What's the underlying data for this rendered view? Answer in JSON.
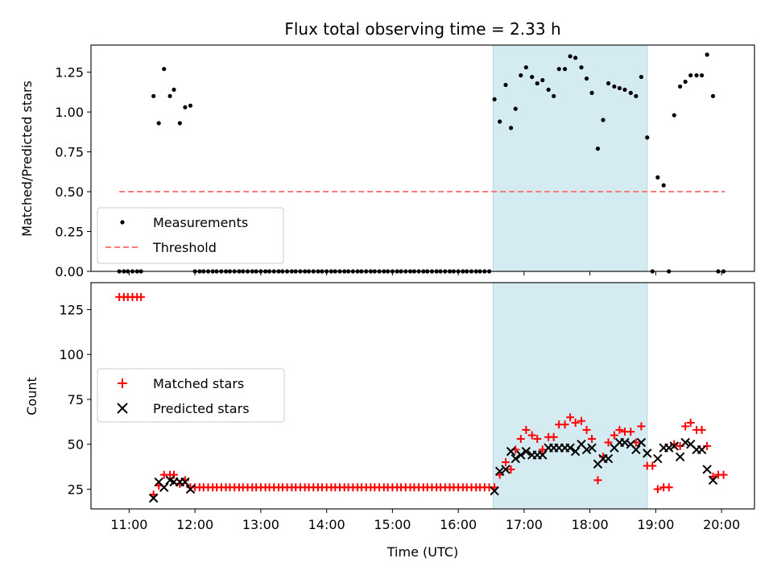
{
  "chart_data": [
    {
      "type": "scatter",
      "title": "Flux total observing time = 2.33 h",
      "xlabel": "",
      "ylabel": "Matched/Predicted stars",
      "xlim": [
        10.42,
        20.5
      ],
      "ylim": [
        0.0,
        1.42
      ],
      "yticks": [
        "0.00",
        "0.25",
        "0.50",
        "0.75",
        "1.00",
        "1.25"
      ],
      "ytick_values": [
        0,
        0.25,
        0.5,
        0.75,
        1.0,
        1.25
      ],
      "shaded_region": {
        "x_start": 16.53,
        "x_end": 18.87,
        "color": "#d4ebf1"
      },
      "legend": {
        "position": "lower-left",
        "entries": [
          "Measurements",
          "Threshold"
        ]
      },
      "series": [
        {
          "name": "Measurements",
          "marker": "dot",
          "color": "#000000",
          "x": [
            10.85,
            10.92,
            10.98,
            11.05,
            11.12,
            11.18,
            11.37,
            11.45,
            11.53,
            11.62,
            11.68,
            11.77,
            11.85,
            11.93,
            12.0,
            12.07,
            12.13,
            12.2,
            12.27,
            12.33,
            12.4,
            12.47,
            12.53,
            12.6,
            12.67,
            12.73,
            12.8,
            12.87,
            12.93,
            13.0,
            13.07,
            13.13,
            13.2,
            13.27,
            13.33,
            13.4,
            13.47,
            13.53,
            13.6,
            13.67,
            13.73,
            13.8,
            13.87,
            13.93,
            14.0,
            14.07,
            14.13,
            14.2,
            14.27,
            14.33,
            14.4,
            14.47,
            14.53,
            14.6,
            14.67,
            14.73,
            14.8,
            14.87,
            14.93,
            15.0,
            15.07,
            15.13,
            15.2,
            15.27,
            15.33,
            15.4,
            15.47,
            15.53,
            15.6,
            15.67,
            15.73,
            15.8,
            15.87,
            15.93,
            16.0,
            16.07,
            16.13,
            16.2,
            16.27,
            16.33,
            16.4,
            16.47,
            16.55,
            16.63,
            16.72,
            16.8,
            16.87,
            16.95,
            17.03,
            17.12,
            17.2,
            17.28,
            17.37,
            17.45,
            17.53,
            17.62,
            17.7,
            17.78,
            17.87,
            17.95,
            18.03,
            18.12,
            18.2,
            18.28,
            18.37,
            18.45,
            18.53,
            18.62,
            18.7,
            18.78,
            18.87,
            18.95,
            19.03,
            19.12,
            19.2,
            19.28,
            19.37,
            19.45,
            19.53,
            19.62,
            19.7,
            19.78,
            19.87,
            19.95,
            20.03
          ],
          "y": [
            0,
            0,
            0,
            0,
            0,
            0,
            1.1,
            0.93,
            1.27,
            1.1,
            1.14,
            0.93,
            1.03,
            1.04,
            0,
            0,
            0,
            0,
            0,
            0,
            0,
            0,
            0,
            0,
            0,
            0,
            0,
            0,
            0,
            0,
            0,
            0,
            0,
            0,
            0,
            0,
            0,
            0,
            0,
            0,
            0,
            0,
            0,
            0,
            0,
            0,
            0,
            0,
            0,
            0,
            0,
            0,
            0,
            0,
            0,
            0,
            0,
            0,
            0,
            0,
            0,
            0,
            0,
            0,
            0,
            0,
            0,
            0,
            0,
            0,
            0,
            0,
            0,
            0,
            0,
            0,
            0,
            0,
            0,
            0,
            0,
            0,
            1.08,
            0.94,
            1.17,
            0.9,
            1.02,
            1.23,
            1.28,
            1.22,
            1.18,
            1.2,
            1.14,
            1.1,
            1.27,
            1.27,
            1.35,
            1.34,
            1.28,
            1.21,
            1.12,
            0.77,
            0.95,
            1.18,
            1.16,
            1.15,
            1.14,
            1.12,
            1.1,
            1.22,
            0.84,
            0.0,
            0.59,
            0.54,
            0.0,
            0.98,
            1.16,
            1.19,
            1.23,
            1.23,
            1.23,
            1.36,
            1.1,
            0.0,
            0.0
          ]
        },
        {
          "name": "Threshold",
          "style": "dashed",
          "color": "#ff7b7b",
          "x": [
            10.85,
            20.05
          ],
          "y": [
            0.5,
            0.5
          ]
        }
      ]
    },
    {
      "type": "scatter",
      "xlabel": "Time (UTC)",
      "ylabel": "Count",
      "xlim": [
        10.42,
        20.5
      ],
      "ylim": [
        14,
        140
      ],
      "xticks": [
        "11:00",
        "12:00",
        "13:00",
        "14:00",
        "15:00",
        "16:00",
        "17:00",
        "18:00",
        "19:00",
        "20:00"
      ],
      "xtick_values": [
        11,
        12,
        13,
        14,
        15,
        16,
        17,
        18,
        19,
        20
      ],
      "yticks": [
        "25",
        "50",
        "75",
        "100",
        "125"
      ],
      "ytick_values": [
        25,
        50,
        75,
        100,
        125
      ],
      "shaded_region": {
        "x_start": 16.53,
        "x_end": 18.87,
        "color": "#d4ebf1"
      },
      "legend": {
        "position": "center-left",
        "entries": [
          "Matched stars",
          "Predicted stars"
        ]
      },
      "series": [
        {
          "name": "Matched stars",
          "marker": "plus",
          "color": "#ff0000",
          "x": [
            10.85,
            10.92,
            10.98,
            11.05,
            11.12,
            11.18,
            11.37,
            11.45,
            11.53,
            11.62,
            11.68,
            11.77,
            11.85,
            11.93,
            12.0,
            12.07,
            12.13,
            12.2,
            12.27,
            12.33,
            12.4,
            12.47,
            12.53,
            12.6,
            12.67,
            12.73,
            12.8,
            12.87,
            12.93,
            13.0,
            13.07,
            13.13,
            13.2,
            13.27,
            13.33,
            13.4,
            13.47,
            13.53,
            13.6,
            13.67,
            13.73,
            13.8,
            13.87,
            13.93,
            14.0,
            14.07,
            14.13,
            14.2,
            14.27,
            14.33,
            14.4,
            14.47,
            14.53,
            14.6,
            14.67,
            14.73,
            14.8,
            14.87,
            14.93,
            15.0,
            15.07,
            15.13,
            15.2,
            15.27,
            15.33,
            15.4,
            15.47,
            15.53,
            15.6,
            15.67,
            15.73,
            15.8,
            15.87,
            15.93,
            16.0,
            16.07,
            16.13,
            16.2,
            16.27,
            16.33,
            16.4,
            16.47,
            16.55,
            16.63,
            16.72,
            16.8,
            16.87,
            16.95,
            17.03,
            17.12,
            17.2,
            17.28,
            17.37,
            17.45,
            17.53,
            17.62,
            17.7,
            17.78,
            17.87,
            17.95,
            18.03,
            18.12,
            18.2,
            18.28,
            18.37,
            18.45,
            18.53,
            18.62,
            18.7,
            18.78,
            18.87,
            18.95,
            19.03,
            19.12,
            19.2,
            19.28,
            19.37,
            19.45,
            19.53,
            19.62,
            19.7,
            19.78,
            19.87,
            19.95,
            20.03
          ],
          "y": [
            132,
            132,
            132,
            132,
            132,
            132,
            22,
            27,
            33,
            33,
            33,
            28,
            30,
            26,
            26,
            26,
            26,
            26,
            26,
            26,
            26,
            26,
            26,
            26,
            26,
            26,
            26,
            26,
            26,
            26,
            26,
            26,
            26,
            26,
            26,
            26,
            26,
            26,
            26,
            26,
            26,
            26,
            26,
            26,
            26,
            26,
            26,
            26,
            26,
            26,
            26,
            26,
            26,
            26,
            26,
            26,
            26,
            26,
            26,
            26,
            26,
            26,
            26,
            26,
            26,
            26,
            26,
            26,
            26,
            26,
            26,
            26,
            26,
            26,
            26,
            26,
            26,
            26,
            26,
            26,
            26,
            26,
            26,
            33,
            40,
            36,
            47,
            53,
            58,
            55,
            53,
            47,
            54,
            54,
            61,
            61,
            65,
            62,
            63,
            58,
            53,
            30,
            43,
            51,
            55,
            58,
            57,
            57,
            51,
            60,
            38,
            38,
            25,
            26,
            26,
            50,
            49,
            60,
            62,
            58,
            58,
            49,
            32,
            33,
            33
          ]
        },
        {
          "name": "Predicted stars",
          "marker": "x",
          "color": "#000000",
          "x": [
            11.37,
            11.45,
            11.53,
            11.62,
            11.68,
            11.77,
            11.85,
            11.93,
            16.55,
            16.63,
            16.72,
            16.8,
            16.87,
            16.95,
            17.03,
            17.12,
            17.2,
            17.28,
            17.37,
            17.45,
            17.53,
            17.62,
            17.7,
            17.78,
            17.87,
            17.95,
            18.03,
            18.12,
            18.2,
            18.28,
            18.37,
            18.45,
            18.53,
            18.62,
            18.7,
            18.78,
            18.87,
            19.03,
            19.12,
            19.2,
            19.28,
            19.37,
            19.45,
            19.53,
            19.62,
            19.7,
            19.78,
            19.87
          ],
          "y": [
            20,
            29,
            26,
            30,
            29,
            29,
            29,
            25,
            24,
            35,
            36,
            46,
            42,
            44,
            46,
            44,
            44,
            44,
            48,
            48,
            48,
            48,
            48,
            46,
            50,
            47,
            48,
            39,
            42,
            42,
            48,
            51,
            51,
            50,
            47,
            51,
            45,
            42,
            48,
            48,
            49,
            43,
            51,
            50,
            47,
            47,
            36,
            30
          ]
        }
      ]
    }
  ]
}
